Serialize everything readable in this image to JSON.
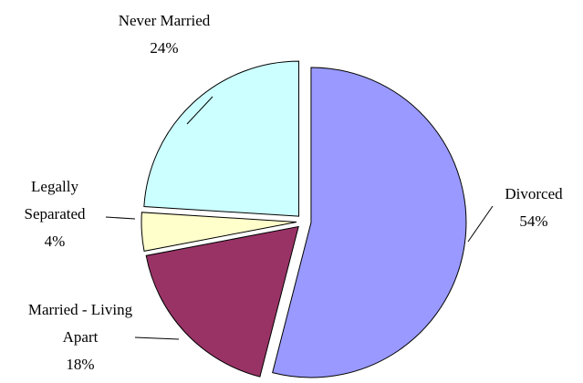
{
  "chart_data": {
    "type": "pie",
    "categories": [
      "Divorced",
      "Married - Living Apart",
      "Legally Separated",
      "Never Married"
    ],
    "values": [
      54,
      18,
      4,
      24
    ],
    "value_labels": [
      "54%",
      "18%",
      "4%",
      "24%"
    ],
    "colors": [
      "#9999ff",
      "#993366",
      "#ffffcc",
      "#ccffff"
    ]
  }
}
